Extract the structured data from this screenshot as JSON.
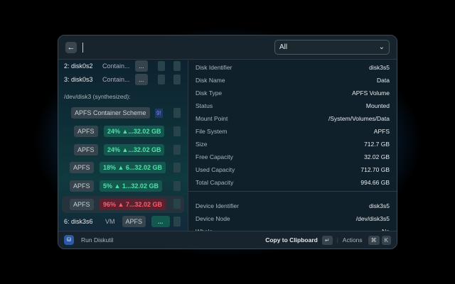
{
  "header": {
    "back_icon": "arrow-left-icon",
    "search_value": "",
    "filter": {
      "selected": "All"
    }
  },
  "list": {
    "rows": [
      {
        "name": "2: disk0s2",
        "type": "Contain...",
        "btn": "..."
      },
      {
        "name": "3: disk0s3",
        "type": "Contain...",
        "btn": "..."
      }
    ],
    "section": "/dev/disk3 (synthesized):",
    "scheme": "APFS Container Scheme",
    "scheme_badge": "9!",
    "volumes": [
      {
        "fs": "APFS",
        "usage": "24% ▲...32.02 GB",
        "status": "ok"
      },
      {
        "fs": "APFS",
        "usage": "24% ▲...32.02 GB",
        "status": "ok"
      },
      {
        "fs": "APFS",
        "usage": "18% ▲ 6...32.02 GB",
        "status": "ok"
      },
      {
        "fs": "APFS",
        "usage": "5% ▲ 1...32.02 GB",
        "status": "ok"
      },
      {
        "fs": "APFS",
        "usage": "96% ▲ 7...32.02 GB",
        "status": "critical"
      }
    ],
    "last": {
      "name": "6: disk3s6",
      "type": "VM",
      "fs": "APFS",
      "btn": "..."
    }
  },
  "details": [
    {
      "k": "Disk Identifier",
      "v": "disk3s5"
    },
    {
      "k": "Disk Name",
      "v": "Data"
    },
    {
      "k": "Disk Type",
      "v": "APFS Volume"
    },
    {
      "k": "Status",
      "v": "Mounted"
    },
    {
      "k": "Mount Point",
      "v": "/System/Volumes/Data"
    },
    {
      "k": "File System",
      "v": "APFS"
    },
    {
      "k": "Size",
      "v": "712.7 GB"
    },
    {
      "k": "Free Capacity",
      "v": "32.02 GB"
    },
    {
      "k": "Used Capacity",
      "v": "712.70 GB"
    },
    {
      "k": "Total Capacity",
      "v": "994.66 GB"
    },
    {
      "k": "Device Identifier",
      "v": "disk3s5"
    },
    {
      "k": "Device Node",
      "v": "/dev/disk3s5"
    },
    {
      "k": "Whole",
      "v": "No"
    }
  ],
  "footer": {
    "title": "Run Diskutil",
    "primary": "Copy to Clipboard",
    "primary_key": "↵",
    "actions": "Actions",
    "key1": "⌘",
    "key2": "K"
  },
  "colors": {
    "ok": "#4fe0a8",
    "critical": "#ff5c6c"
  }
}
